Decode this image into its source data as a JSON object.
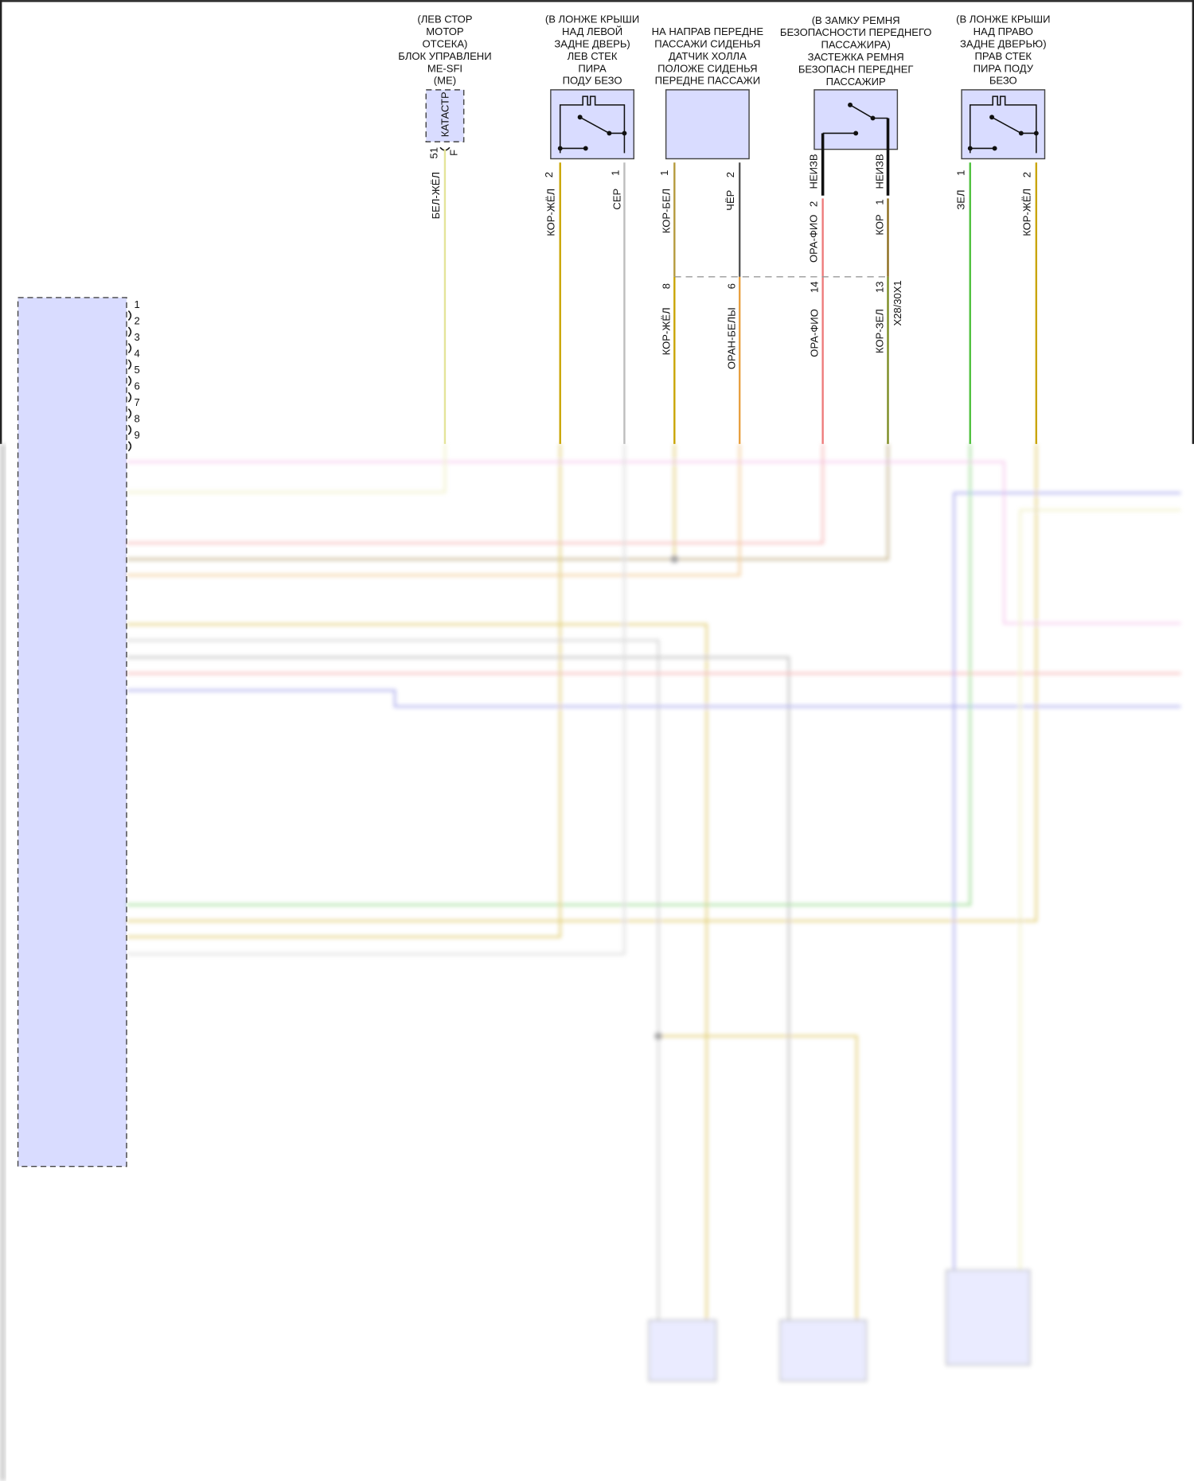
{
  "components": {
    "ecm": {
      "lines": [
        "(ЛЕВ СТОР",
        "МОТОР",
        "ОТСЕКА)",
        "БЛОК УПРАВЛЕНИ",
        "ME-SFI",
        "(ME)"
      ],
      "inner_label": "КАТАСТР",
      "pin_a": "51",
      "pin_b": "F",
      "wire": "БЕЛ-ЖЁЛ"
    },
    "left_sensor": {
      "lines": [
        "(В ЛОНЖЕ КРЫШИ",
        "НАД ЛЕВОЙ",
        "ЗАДНЕ ДВЕРЬ)",
        "ЛЕВ СТЕК",
        "ПИРА",
        "ПОДУ БЕЗО"
      ],
      "pins": [
        "2",
        "1"
      ],
      "wires": [
        "КОР-ЖЁЛ",
        "СЕР"
      ]
    },
    "hall_sensor": {
      "lines": [
        "НА НАПРАВ ПЕРЕДНЕ",
        "ПАССАЖИ СИДЕНЬЯ",
        "ДАТЧИК ХОЛЛА",
        "ПОЛОЖЕ СИДЕНЬЯ",
        "ПЕРЕДНЕ ПАССАЖИ"
      ],
      "pins": [
        "1",
        "2"
      ],
      "wires": [
        "КОР-БЕЛ",
        "ЧЁР"
      ]
    },
    "buckle": {
      "lines": [
        "(В ЗАМКУ РЕМНЯ",
        "БЕЗОПАСНОСТИ ПЕРЕДНЕГО",
        "ПАССАЖИРА)",
        "ЗАСТЕЖКА РЕМНЯ",
        "БЕЗОПАСН ПЕРЕДНЕГ",
        "ПАССАЖИР"
      ],
      "upper_wires": [
        "НЕИЗВ",
        "НЕИЗВ"
      ],
      "pins": [
        "2",
        "1"
      ],
      "wires": [
        "ОРА-ФИО",
        "КОР"
      ]
    },
    "right_sensor": {
      "lines": [
        "(В ЛОНЖЕ КРЫШИ",
        "НАД ПРАВО",
        "ЗАДНЕ ДВЕРЬЮ)",
        "ПРАВ СТЕК",
        "ПИРА ПОДУ",
        "БЕЗО"
      ],
      "pins": [
        "1",
        "2"
      ],
      "wires": [
        "ЗЕЛ",
        "КОР-ЖЁЛ"
      ]
    }
  },
  "connector": {
    "name": "X28/30X1",
    "pins": [
      "8",
      "6",
      "14",
      "13"
    ],
    "wires": [
      "КОР-ЖЁЛ",
      "ОРАН-БЕЛЫ",
      "ОРА-ФИО",
      "КОР-ЗЕЛ"
    ]
  },
  "control_unit": {
    "pins": [
      "1",
      "2",
      "3",
      "4",
      "5",
      "6",
      "7",
      "8",
      "9"
    ]
  },
  "wire_colors": {
    "bel_zhel": "#e4e49a",
    "kor_zhel": "#c9a400",
    "ser": "#bdbdbd",
    "kor_bel": "#b59a3c",
    "cher": "#555555",
    "ora_fio": "#ee7a7a",
    "kor": "#8a6a1a",
    "zel": "#4cbf3a",
    "oran_bel": "#e8a040",
    "kor_zel": "#7a8a20",
    "blue": "#6666dd",
    "pink": "#f0a0e0"
  }
}
